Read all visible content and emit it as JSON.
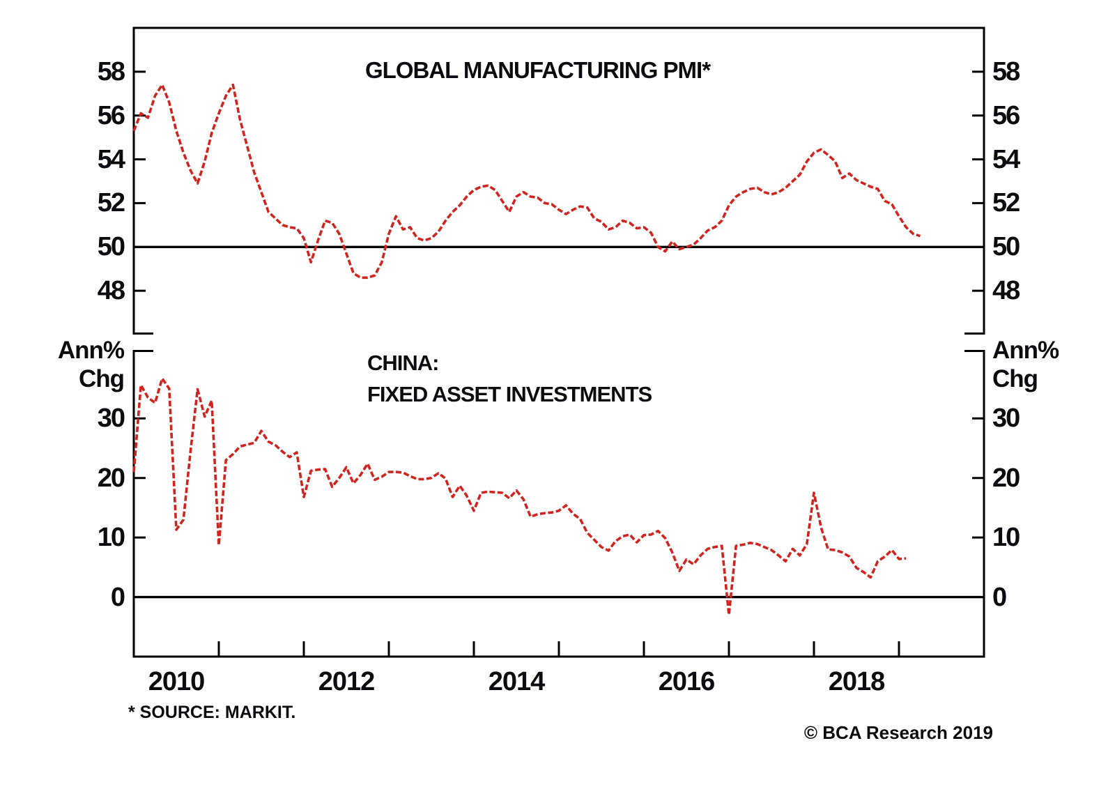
{
  "page": {
    "background": "#ffffff"
  },
  "colors": {
    "line": "#d2241e",
    "axis": "#000000",
    "text": "#0c0c10"
  },
  "footer": {
    "source_note": "* SOURCE: MARKIT.",
    "copyright": "© BCA Research 2019"
  },
  "x_axis": {
    "start": "2010-01",
    "frequency": "monthly",
    "tick_years": [
      2011,
      2012,
      2013,
      2014,
      2015,
      2016,
      2017,
      2018,
      2019
    ],
    "year_labels": [
      {
        "text": "2010",
        "month_offset": 6
      },
      {
        "text": "2012",
        "month_offset": 30
      },
      {
        "text": "2014",
        "month_offset": 54
      },
      {
        "text": "2016",
        "month_offset": 78
      },
      {
        "text": "2018",
        "month_offset": 102
      }
    ]
  },
  "chart_data": [
    {
      "type": "line",
      "title": "GLOBAL MANUFACTURING PMI*",
      "yticks": [
        58,
        56,
        54,
        52,
        50,
        48
      ],
      "ylim": [
        46,
        60
      ],
      "baseline": 50,
      "grid": false,
      "x_start": "2010-01",
      "series": [
        {
          "name": "Global Manufacturing PMI",
          "color": "#d2241e",
          "style": "dashed",
          "values": [
            55.3,
            56.1,
            55.9,
            56.9,
            57.4,
            56.6,
            55.3,
            54.3,
            53.5,
            52.9,
            53.9,
            55.2,
            56.1,
            56.9,
            57.4,
            55.8,
            54.6,
            53.4,
            52.5,
            51.6,
            51.3,
            51.0,
            50.9,
            50.85,
            50.4,
            49.3,
            50.3,
            51.2,
            51.1,
            50.6,
            49.7,
            48.8,
            48.6,
            48.6,
            48.7,
            49.3,
            50.6,
            51.4,
            50.8,
            50.9,
            50.4,
            50.3,
            50.4,
            50.7,
            51.2,
            51.6,
            51.9,
            52.3,
            52.6,
            52.75,
            52.8,
            52.6,
            52.1,
            51.6,
            52.3,
            52.5,
            52.3,
            52.25,
            52.0,
            51.95,
            51.7,
            51.5,
            51.7,
            51.85,
            51.8,
            51.3,
            51.15,
            50.8,
            50.9,
            51.2,
            51.1,
            50.85,
            50.9,
            50.65,
            50.0,
            49.8,
            50.25,
            49.9,
            50.0,
            50.1,
            50.4,
            50.75,
            50.9,
            51.2,
            51.9,
            52.3,
            52.5,
            52.65,
            52.7,
            52.5,
            52.4,
            52.5,
            52.7,
            53.0,
            53.3,
            53.9,
            54.3,
            54.45,
            54.2,
            53.9,
            53.15,
            53.35,
            53.05,
            52.9,
            52.75,
            52.65,
            52.1,
            51.95,
            51.4,
            50.9,
            50.6,
            50.5
          ]
        }
      ]
    },
    {
      "type": "line",
      "title_lines": [
        "CHINA:",
        "FIXED ASSET INVESTMENTS"
      ],
      "unit_label_lines": [
        "Ann%",
        "Chg"
      ],
      "yticks": [
        30,
        20,
        10,
        0
      ],
      "ylim": [
        -10,
        41.5
      ],
      "baseline": 0,
      "grid": false,
      "x_start": "2010-01",
      "series": [
        {
          "name": "China Fixed Asset Investments (Ann% Chg)",
          "color": "#d2241e",
          "style": "dashed",
          "values": [
            21.0,
            35.6,
            33.5,
            32.6,
            36.7,
            35.0,
            11.3,
            13.0,
            24.4,
            34.9,
            30.3,
            33.0,
            8.7,
            23.0,
            24.0,
            25.3,
            25.6,
            25.9,
            27.9,
            26.1,
            25.5,
            24.4,
            23.5,
            24.3,
            16.8,
            21.2,
            21.4,
            21.5,
            18.5,
            20.0,
            21.8,
            19.1,
            20.5,
            22.4,
            19.7,
            20.2,
            21.0,
            21.0,
            20.9,
            20.3,
            19.8,
            19.8,
            20.0,
            20.8,
            19.9,
            16.8,
            18.7,
            17.0,
            14.5,
            17.5,
            17.7,
            17.6,
            17.5,
            16.6,
            17.9,
            16.4,
            13.5,
            13.9,
            14.1,
            14.2,
            14.5,
            15.4,
            14.0,
            13.1,
            10.8,
            9.6,
            8.4,
            7.8,
            9.4,
            10.2,
            10.5,
            9.2,
            10.4,
            10.5,
            11.1,
            9.9,
            7.5,
            4.4,
            6.3,
            5.5,
            7.0,
            8.1,
            8.4,
            8.6,
            -3.0,
            8.6,
            8.8,
            9.1,
            8.9,
            8.4,
            7.9,
            7.0,
            6.0,
            8.1,
            7.0,
            8.9,
            17.5,
            11.7,
            8.0,
            7.9,
            7.5,
            6.8,
            4.9,
            4.2,
            3.3,
            6.0,
            6.8,
            7.9,
            6.4,
            6.5
          ]
        }
      ]
    }
  ]
}
